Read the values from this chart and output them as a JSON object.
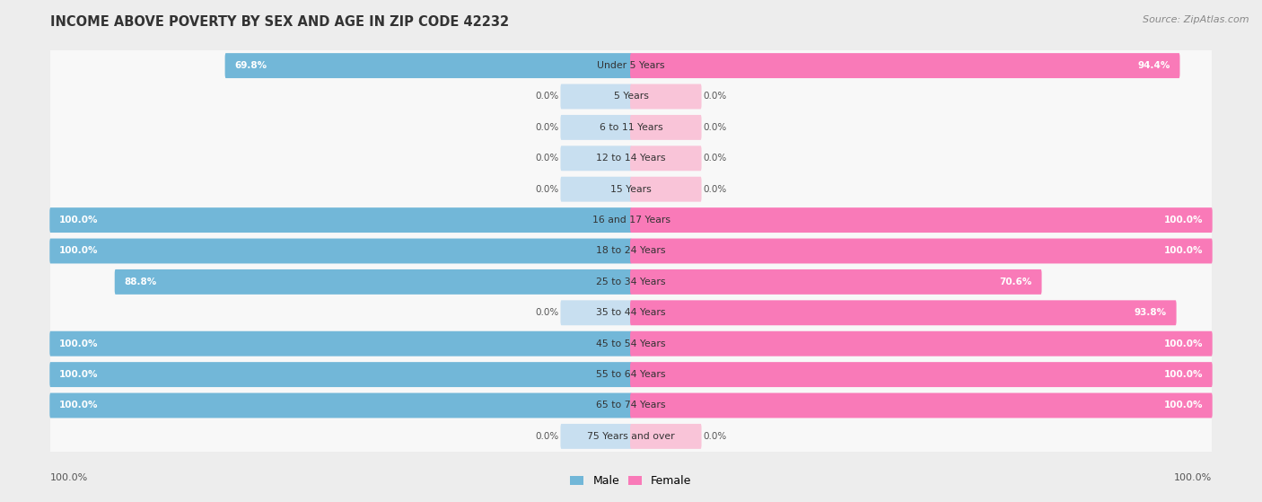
{
  "title": "INCOME ABOVE POVERTY BY SEX AND AGE IN ZIP CODE 42232",
  "source": "Source: ZipAtlas.com",
  "categories": [
    "Under 5 Years",
    "5 Years",
    "6 to 11 Years",
    "12 to 14 Years",
    "15 Years",
    "16 and 17 Years",
    "18 to 24 Years",
    "25 to 34 Years",
    "35 to 44 Years",
    "45 to 54 Years",
    "55 to 64 Years",
    "65 to 74 Years",
    "75 Years and over"
  ],
  "male_values": [
    69.8,
    0.0,
    0.0,
    0.0,
    0.0,
    100.0,
    100.0,
    88.8,
    0.0,
    100.0,
    100.0,
    100.0,
    0.0
  ],
  "female_values": [
    94.4,
    0.0,
    0.0,
    0.0,
    0.0,
    100.0,
    100.0,
    70.6,
    93.8,
    100.0,
    100.0,
    100.0,
    0.0
  ],
  "male_color": "#72b7d8",
  "female_color": "#f97ab8",
  "male_color_light": "#c8dff0",
  "female_color_light": "#f9c4d8",
  "bg_color": "#ededed",
  "row_bg": "#f8f8f8",
  "figsize": [
    14.06,
    5.59
  ],
  "dpi": 100,
  "min_bar_val": 12.0
}
